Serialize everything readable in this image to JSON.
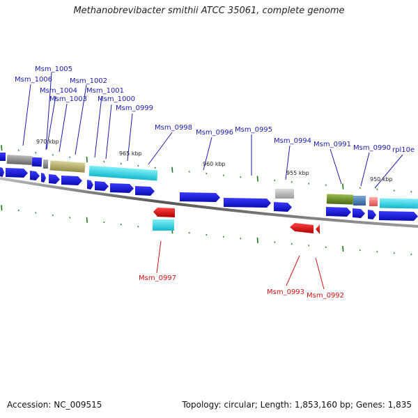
{
  "title": "Methanobrevibacter smithii ATCC 35061, complete genome",
  "footer": {
    "accession": "Accession: NC_009515",
    "summary": "Topology: circular; Length: 1,853,160 bp; Genes: 1,835"
  },
  "scale_labels": [
    "970 kbp",
    "965 kbp",
    "960 kbp",
    "955 kbp",
    "950 kbp"
  ],
  "gene_labels": {
    "top": [
      "Msm_1005",
      "Msm_1006",
      "Msm_1004",
      "Msm_1003",
      "Msm_1002",
      "Msm_1001",
      "Msm_1000",
      "Msm_0999",
      "Msm_0998",
      "Msm_0996",
      "Msm_0995",
      "Msm_0994",
      "Msm_0991",
      "Msm_0990",
      "rpl10e"
    ],
    "bottom": [
      "Msm_0997",
      "Msm_0993",
      "Msm_0992"
    ]
  },
  "colors": {
    "forward_gene": "#1010dd",
    "reverse_gene": "#ee1111",
    "top_label": "#1a1aaa",
    "bottom_label": "#cc1111",
    "tick": "#1a7a1a",
    "cyan": "#33d6e6",
    "olive": "#b9b46a",
    "gray": "#8a8a8a",
    "green": "#6e8f2a",
    "steel": "#4a7fb5",
    "pink": "#ef7a7a"
  }
}
